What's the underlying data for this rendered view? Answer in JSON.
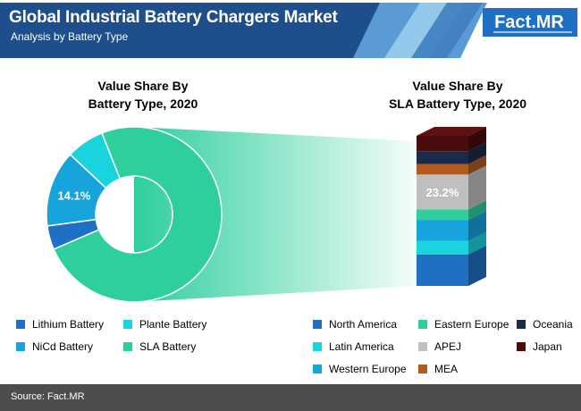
{
  "header": {
    "title": "Global Industrial Battery Chargers Market",
    "subtitle": "Analysis by Battery Type",
    "logo": "Fact.MR",
    "colors": {
      "navy": "#1f4e8c",
      "light_blue": "#5a9ad6",
      "stripe": "#9fd0ef"
    }
  },
  "left_chart_title": [
    "Value Share By",
    "Battery Type, 2020"
  ],
  "right_chart_title": [
    "Value Share By",
    "SLA Battery Type, 2020"
  ],
  "chart_data": [
    {
      "type": "donut",
      "title": "Value Share By Battery Type, 2020",
      "unit": "%",
      "series": [
        {
          "name": "SLA Battery",
          "value": 74.5,
          "color": "#2ecf9d"
        },
        {
          "name": "Lithium Battery",
          "value": 4.4,
          "color": "#1f6fc5"
        },
        {
          "name": "NiCd Battery",
          "value": 14.1,
          "color": "#17a3dc",
          "label": "14.1%"
        },
        {
          "name": "Plante Battery",
          "value": 7.0,
          "color": "#19d4dc"
        }
      ]
    },
    {
      "type": "stacked_bar",
      "title": "Value Share By SLA Battery Type, 2020",
      "unit": "%",
      "series": [
        {
          "name": "North America",
          "value": 21,
          "color": "#1f6fc5"
        },
        {
          "name": "Latin America",
          "value": 9,
          "color": "#19d4dc"
        },
        {
          "name": "Western Europe",
          "value": 14,
          "color": "#17a3dc"
        },
        {
          "name": "Eastern Europe",
          "value": 7,
          "color": "#2ecf9d"
        },
        {
          "name": "APEJ",
          "value": 23.2,
          "color": "#bfbfbf",
          "label": "23.2%"
        },
        {
          "name": "MEA",
          "value": 7,
          "color": "#b35a1f"
        },
        {
          "name": "Oceania",
          "value": 8.5,
          "color": "#1b2b4a"
        },
        {
          "name": "Japan",
          "value": 10.3,
          "color": "#4a0c0c"
        }
      ]
    }
  ],
  "legend_left": [
    {
      "label": "Lithium Battery",
      "color": "#1f6fc5"
    },
    {
      "label": "Plante Battery",
      "color": "#19d4dc"
    },
    {
      "label": "NiCd Battery",
      "color": "#17a3dc"
    },
    {
      "label": "SLA Battery",
      "color": "#2ecf9d"
    }
  ],
  "legend_right": [
    {
      "label": "North America",
      "color": "#1f6fc5"
    },
    {
      "label": "Eastern Europe",
      "color": "#2ecf9d"
    },
    {
      "label": "Oceania",
      "color": "#1b2b4a"
    },
    {
      "label": "Latin America",
      "color": "#19d4dc"
    },
    {
      "label": "APEJ",
      "color": "#bfbfbf"
    },
    {
      "label": "Japan",
      "color": "#4a0c0c"
    },
    {
      "label": "Western Europe",
      "color": "#17a3dc"
    },
    {
      "label": "MEA",
      "color": "#b35a1f"
    }
  ],
  "footer": {
    "source": "Source: Fact.MR"
  }
}
